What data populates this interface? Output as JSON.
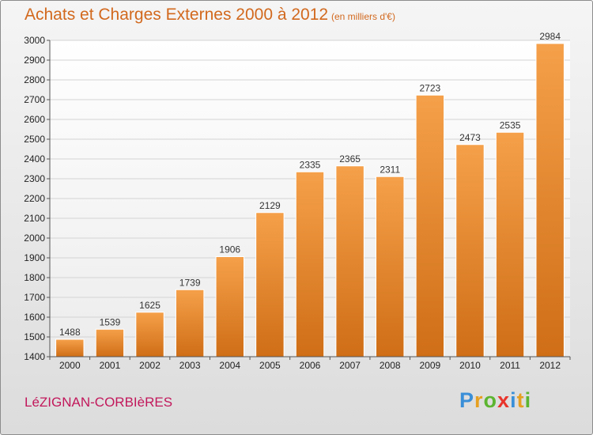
{
  "title": "Achats et Charges Externes 2000 à 2012",
  "subtitle": "(en milliers d'€)",
  "location": "LéZIGNAN-CORBIèRES",
  "brand": {
    "letters": [
      "P",
      "r",
      "o",
      "x",
      "i",
      "t",
      "i"
    ],
    "colors": [
      "#3a8fd8",
      "#e6a021",
      "#5cb531",
      "#e8352c",
      "#3a8fd8",
      "#e6a021",
      "#5cb531"
    ]
  },
  "colors": {
    "bar_top": "#f5a04a",
    "bar_bottom": "#cf6e16",
    "title": "#d2691e",
    "location": "#c2185b"
  },
  "chart_data": {
    "type": "bar",
    "title": "Achats et Charges Externes 2000 à 2012",
    "subtitle": "(en milliers d'€)",
    "xlabel": "",
    "ylabel": "",
    "categories": [
      "2000",
      "2001",
      "2002",
      "2003",
      "2004",
      "2005",
      "2006",
      "2007",
      "2008",
      "2009",
      "2010",
      "2011",
      "2012"
    ],
    "values": [
      1488,
      1539,
      1625,
      1739,
      1906,
      2129,
      2335,
      2365,
      2311,
      2723,
      2473,
      2535,
      2984
    ],
    "ylim": [
      1400,
      3000
    ],
    "yticks": [
      1400,
      1500,
      1600,
      1700,
      1800,
      1900,
      2000,
      2100,
      2200,
      2300,
      2400,
      2500,
      2600,
      2700,
      2800,
      2900,
      3000
    ],
    "grid": true,
    "legend": "none"
  }
}
